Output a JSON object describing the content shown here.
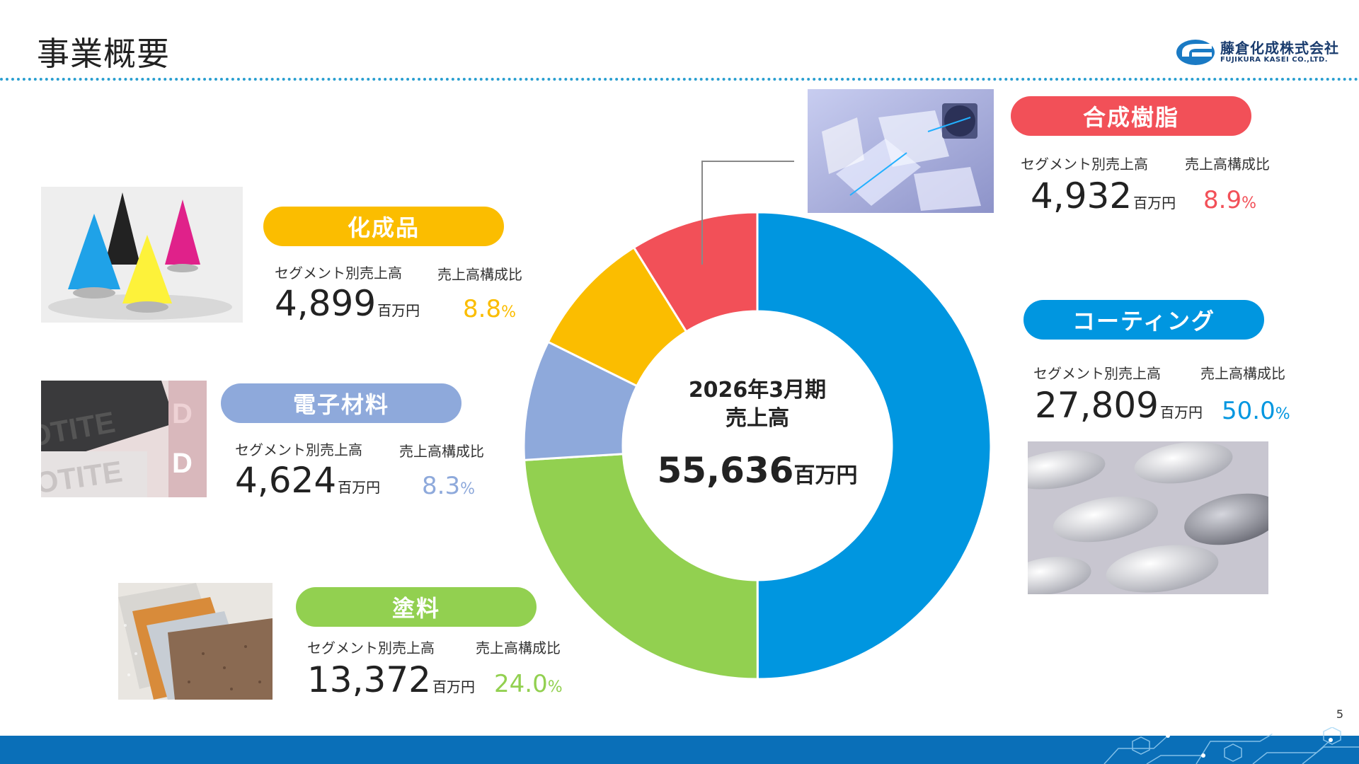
{
  "page": {
    "title": "事業概要",
    "page_number": "5"
  },
  "logo": {
    "name_jp": "藤倉化成株式会社",
    "name_en": "FUJIKURA KASEI CO.,LTD."
  },
  "labels": {
    "segment_sales": "セグメント別売上高",
    "ratio": "売上高構成比",
    "unit": "百万円",
    "percent_sign": "%"
  },
  "center": {
    "period": "2026年3月期",
    "caption": "売上高",
    "total": "55,636",
    "unit": "百万円"
  },
  "segments": {
    "resin": {
      "name": "合成樹脂",
      "sales": "4,932",
      "ratio": "8.9",
      "color": "#f25058"
    },
    "chem": {
      "name": "化成品",
      "sales": "4,899",
      "ratio": "8.8",
      "color": "#fbbd00"
    },
    "elec": {
      "name": "電子材料",
      "sales": "4,624",
      "ratio": "8.3",
      "color": "#8ea9db"
    },
    "paint": {
      "name": "塗料",
      "sales": "13,372",
      "ratio": "24.0",
      "color": "#92d050"
    },
    "coating": {
      "name": "コーティング",
      "sales": "27,809",
      "ratio": "50.0",
      "color": "#0096e0"
    }
  },
  "chart_data": {
    "type": "pie",
    "title": "2026年3月期 売上高",
    "unit": "百万円",
    "total": 55636,
    "categories": [
      "コーティング",
      "塗料",
      "電子材料",
      "化成品",
      "合成樹脂"
    ],
    "values": [
      27809,
      13372,
      4624,
      4899,
      4932
    ],
    "percentages": [
      50.0,
      24.0,
      8.3,
      8.8,
      8.9
    ],
    "colors": [
      "#0096e0",
      "#92d050",
      "#8ea9db",
      "#fbbd00",
      "#f25058"
    ],
    "donut": true,
    "start": "12 o'clock, clockwise"
  }
}
